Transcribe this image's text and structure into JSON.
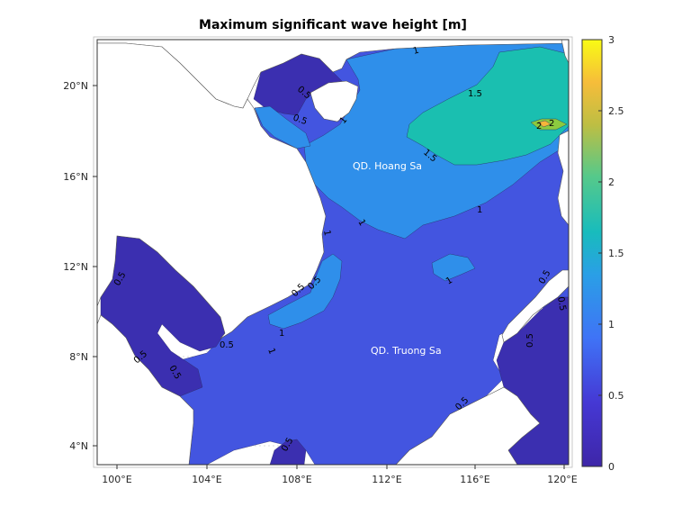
{
  "title": "Maximum significant wave height [m]",
  "colors": {
    "level_0": "#3b2fb0",
    "level_05": "#4355e0",
    "level_1": "#2f8fea",
    "level_15": "#1abfb0",
    "level_2": "#8ccb3f",
    "level_25": "#f6b53a",
    "level_3": "#f6f021",
    "land": "#ffffff"
  },
  "x_ticks": [
    "100°E",
    "104°E",
    "108°E",
    "112°E",
    "116°E",
    "120°E"
  ],
  "y_ticks": [
    "20°N",
    "16°N",
    "12°N",
    "8°N",
    "4°N"
  ],
  "colorbar": {
    "ticks": [
      "3",
      "2.5",
      "2",
      "1.5",
      "1",
      "0.5",
      "0"
    ],
    "range": [
      0,
      3
    ]
  },
  "place_labels": {
    "hoang_sa": "QD. Hoang Sa",
    "truong_sa": "QD. Truong Sa"
  },
  "contour_labels": [
    "1",
    "0.5",
    "0.5",
    "1",
    "1.5",
    "1.5",
    "2",
    "2",
    "1",
    "1",
    "1",
    "0.5",
    "1",
    "0.5",
    "1",
    "0.5",
    "0.5",
    "1",
    "0.5",
    "0.5",
    "0.5",
    "0.5",
    "0.5",
    "0.5",
    "0.5"
  ]
}
